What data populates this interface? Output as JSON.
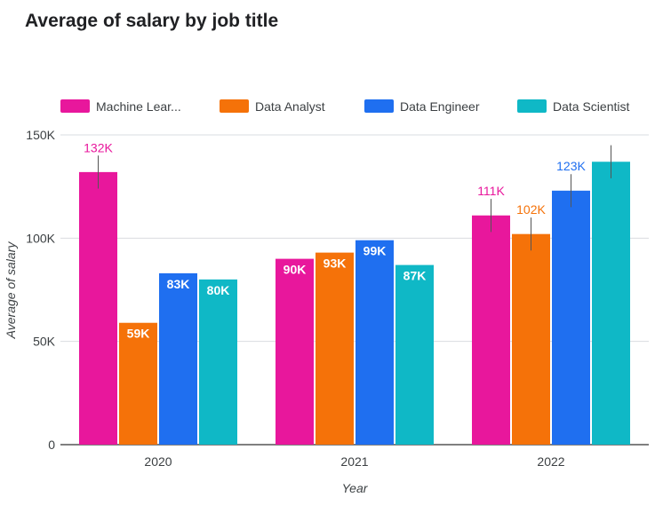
{
  "chart_data": {
    "type": "bar",
    "title": "Average of salary by job title",
    "xlabel": "Year",
    "ylabel": "Average of salary",
    "categories": [
      "2020",
      "2021",
      "2022"
    ],
    "ylim": [
      0,
      150000
    ],
    "yticks": [
      {
        "value": 0,
        "label": "0"
      },
      {
        "value": 50000,
        "label": "50K"
      },
      {
        "value": 100000,
        "label": "100K"
      },
      {
        "value": 150000,
        "label": "150K"
      }
    ],
    "grid": true,
    "legend_position": "top",
    "series": [
      {
        "name": "Machine Lear...",
        "color": "#e8179c",
        "values": [
          132000,
          90000,
          111000
        ],
        "labels": [
          "132K",
          "90K",
          "111K"
        ],
        "label_inside": [
          false,
          true,
          false
        ],
        "error": [
          8000,
          0,
          8000
        ]
      },
      {
        "name": "Data Analyst",
        "color": "#f57209",
        "values": [
          59000,
          93000,
          102000
        ],
        "labels": [
          "59K",
          "93K",
          "102K"
        ],
        "label_inside": [
          true,
          true,
          false
        ],
        "error": [
          0,
          0,
          8000
        ]
      },
      {
        "name": "Data Engineer",
        "color": "#1f6ff0",
        "values": [
          83000,
          99000,
          123000
        ],
        "labels": [
          "83K",
          "99K",
          "123K"
        ],
        "label_inside": [
          true,
          true,
          false
        ],
        "error": [
          0,
          0,
          8000
        ]
      },
      {
        "name": "Data Scientist",
        "color": "#0fb8c6",
        "values": [
          80000,
          87000,
          137000
        ],
        "labels": [
          "80K",
          "87K",
          ""
        ],
        "label_inside": [
          true,
          true,
          false
        ],
        "error": [
          0,
          0,
          8000
        ]
      }
    ]
  }
}
